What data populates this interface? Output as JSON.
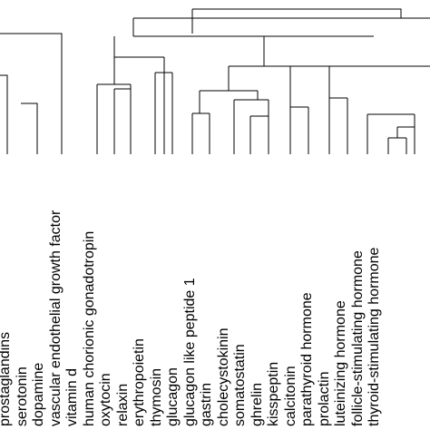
{
  "chart_data": {
    "type": "dendrogram",
    "leaves": [
      "prostaglandins",
      "serotonin",
      "dopamine",
      "vascular endothelial growth factor",
      "vitamin d",
      "human chorionic gonadotropin",
      "oxytocin",
      "relaxin",
      "erythropoietin",
      "thymosin",
      "glucagon",
      "glucagon like peptide 1",
      "gastrin",
      "cholecystokinin",
      "somatostatin",
      "ghrelin",
      "kisspeptin",
      "calcitonin",
      "parathyroid hormone",
      "prolactin",
      "luteinizing hormone",
      "follicle-stimulating hormone",
      "thyroid-stimulating hormone"
    ],
    "line_color": "#000000",
    "text_color": "#000000"
  }
}
